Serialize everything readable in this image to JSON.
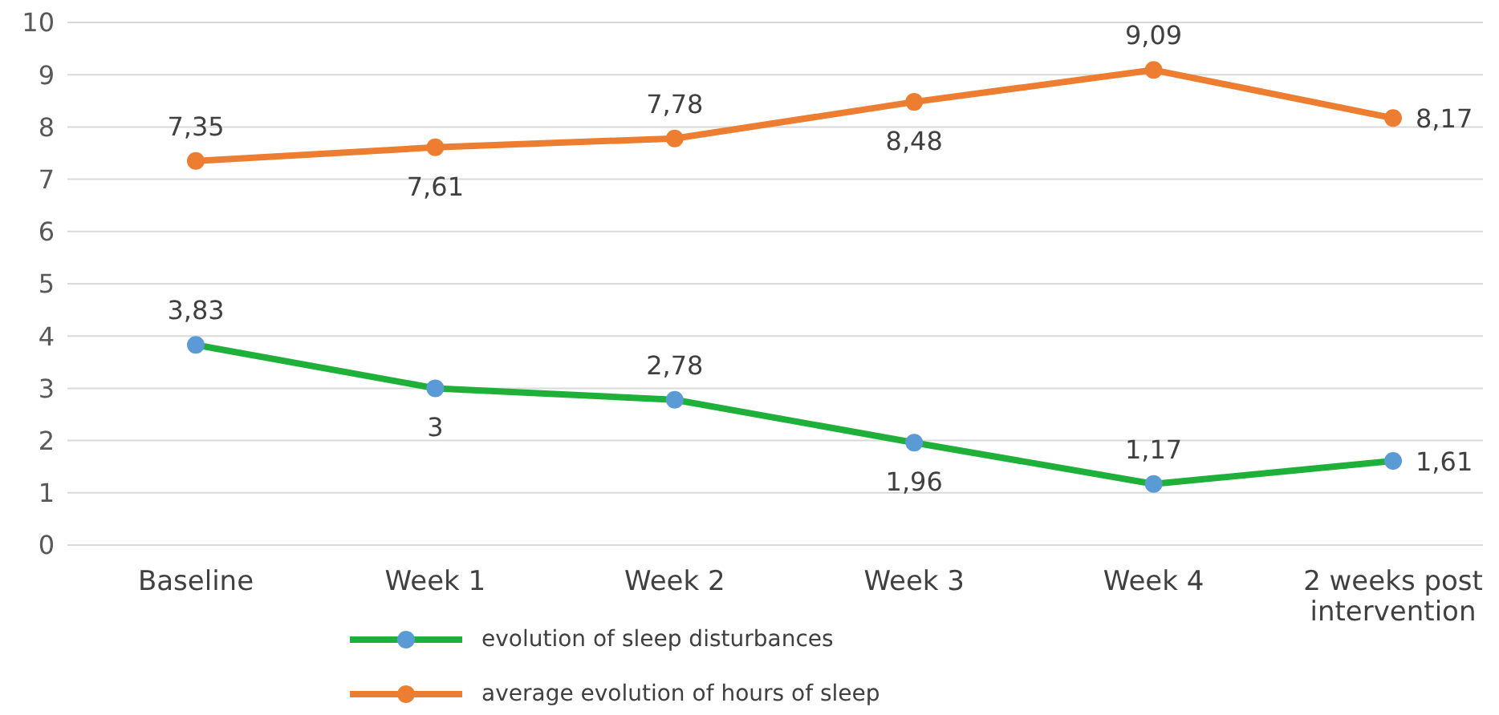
{
  "chart_data": {
    "type": "line",
    "categories": [
      "Baseline",
      "Week 1",
      "Week 2",
      "Week 3",
      "Week 4",
      "2 weeks post intervention"
    ],
    "series": [
      {
        "name": "evolution of sleep disturbances",
        "color": "#1fb03a",
        "colors": [
          "#5b9bd5",
          "#5b9bd5",
          "#5b9bd5",
          "#5b9bd5",
          "#5b9bd5",
          "#5b9bd5"
        ],
        "values": [
          3.83,
          3,
          2.78,
          1.96,
          1.17,
          1.61
        ],
        "value_labels": [
          "3,83",
          "3",
          "2,78",
          "1,96",
          "1,17",
          "1,61"
        ]
      },
      {
        "name": "average evolution of hours of sleep",
        "color": "#ed7d31",
        "colors": [
          "#ed7d31",
          "#ed7d31",
          "#ed7d31",
          "#ed7d31",
          "#ed7d31",
          "#ed7d31"
        ],
        "values": [
          7.35,
          7.61,
          7.78,
          8.48,
          9.09,
          8.17
        ],
        "value_labels": [
          "7,35",
          "7,61",
          "7,78",
          "8,48",
          "9,09",
          "8,17"
        ]
      }
    ],
    "ylim": [
      0,
      10
    ],
    "yticks": [
      0,
      1,
      2,
      3,
      4,
      5,
      6,
      7,
      8,
      9,
      10
    ],
    "grid": "y",
    "legend": "bottom",
    "marker": "circle",
    "line_style": "solid"
  }
}
